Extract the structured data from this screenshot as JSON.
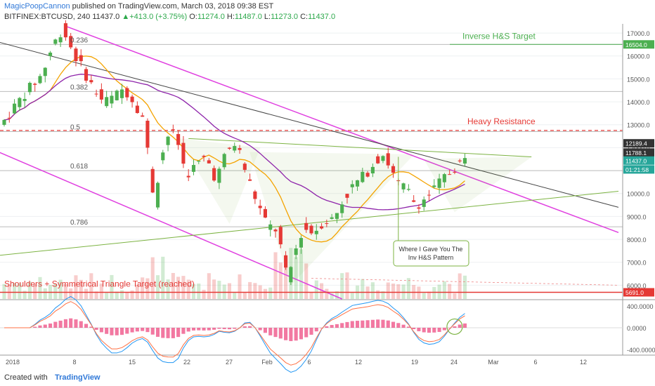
{
  "header": {
    "author": "MagicPoopCannon",
    "published": " published on TradingView.com, March 03, 2018 09:38 EST",
    "symbol": "BITFINEX:BTCUSD, 240",
    "last": "11437.0",
    "change": "+413.0 (+3.75%)",
    "o_label": "O:",
    "o": "11274.0",
    "h_label": "H:",
    "h": "11487.0",
    "l_label": "L:",
    "l": "11273.0",
    "c_label": "C:",
    "c": "11437.0"
  },
  "footer": {
    "created": "Created with",
    "brand": "TradingView"
  },
  "colors": {
    "bull": "#4caf50",
    "bear": "#e53935",
    "magenta": "#e040e0",
    "black_line": "#444444",
    "green_line": "#7cb342",
    "orange_ma": "#f4a300",
    "purple_ma": "#8e24aa",
    "resistance": "#e53935",
    "target": "#4caf50"
  },
  "chart_data": [
    {
      "type": "candlestick",
      "title": "",
      "y_axis": {
        "min": 5400,
        "max": 17400,
        "ticks": [
          6000,
          7000,
          8000,
          9000,
          10000,
          11000,
          12000,
          13000,
          14000,
          15000,
          16000,
          17000
        ],
        "tick_labels": [
          "6000.0",
          "7000.0",
          "8000.0",
          "9000.0",
          "10000.0",
          "11000.0",
          "12000.0",
          "13000.0",
          "14000.0",
          "15000.0",
          "16000.0",
          "17000.0"
        ]
      },
      "x_axis": {
        "tick_labels": [
          "2018",
          "8",
          "15",
          "22",
          "27",
          "Feb",
          "6",
          "12",
          "19",
          "24",
          "Mar",
          "6",
          "12"
        ]
      },
      "fib_levels": [
        {
          "label": "0.236",
          "value": 16500
        },
        {
          "label": "0.382",
          "value": 14450
        },
        {
          "label": "0.5",
          "value": 12700
        },
        {
          "label": "0.618",
          "value": 11000
        },
        {
          "label": "0.786",
          "value": 8550
        }
      ],
      "price_tags": [
        {
          "label": "16504.0",
          "value": 16504,
          "color": "#4caf50"
        },
        {
          "label": "12189.4",
          "value": 12189.4,
          "color": "#333333"
        },
        {
          "label": "11788.1",
          "value": 11788.1,
          "color": "#333333"
        },
        {
          "label": "11437.0",
          "value": 11437,
          "color": "#26a69a"
        },
        {
          "label": "01:21:58",
          "value": 11050,
          "color": "#26a69a"
        },
        {
          "label": "5691.0",
          "value": 5691,
          "color": "#e53935"
        }
      ],
      "annotations": {
        "inverse_target": "Inverse H&S Target",
        "heavy_resistance": "Heavy Resistance",
        "shoulders_target": "Shoulders + Symmetrical Triangle Target (reached)",
        "callout": [
          "Where I Gave You The",
          "Inv H&S Pattern"
        ]
      },
      "price_path": [
        [
          0,
          13000
        ],
        [
          4,
          14200
        ],
        [
          8,
          15200
        ],
        [
          10,
          16400
        ],
        [
          12,
          17200
        ],
        [
          14,
          16200
        ],
        [
          16,
          15400
        ],
        [
          18,
          14600
        ],
        [
          20,
          14000
        ],
        [
          22,
          14200
        ],
        [
          24,
          14600
        ],
        [
          26,
          14000
        ],
        [
          28,
          13200
        ],
        [
          29,
          11000
        ],
        [
          30,
          9600
        ],
        [
          31,
          11400
        ],
        [
          33,
          12800
        ],
        [
          35,
          12000
        ],
        [
          36,
          10800
        ],
        [
          38,
          11200
        ],
        [
          40,
          11600
        ],
        [
          42,
          10600
        ],
        [
          44,
          11800
        ],
        [
          46,
          12200
        ],
        [
          48,
          10800
        ],
        [
          50,
          9600
        ],
        [
          52,
          8600
        ],
        [
          54,
          8400
        ],
        [
          55,
          7200
        ],
        [
          56,
          6100
        ],
        [
          57,
          7200
        ],
        [
          59,
          8500
        ],
        [
          61,
          8300
        ],
        [
          63,
          8800
        ],
        [
          65,
          8900
        ],
        [
          67,
          9800
        ],
        [
          69,
          10400
        ],
        [
          71,
          10800
        ],
        [
          73,
          11400
        ],
        [
          75,
          11800
        ],
        [
          76,
          11000
        ],
        [
          77,
          10700
        ],
        [
          78,
          10200
        ],
        [
          79,
          10300
        ],
        [
          81,
          9500
        ],
        [
          83,
          9800
        ],
        [
          85,
          10300
        ],
        [
          87,
          10800
        ],
        [
          89,
          11200
        ],
        [
          90,
          11437
        ]
      ]
    },
    {
      "type": "macd",
      "y_axis": {
        "tick_labels": [
          "400.0000",
          "0.0000",
          "-400.0000"
        ],
        "ticks": [
          400,
          0,
          -400
        ],
        "min": -500,
        "max": 500
      }
    }
  ]
}
